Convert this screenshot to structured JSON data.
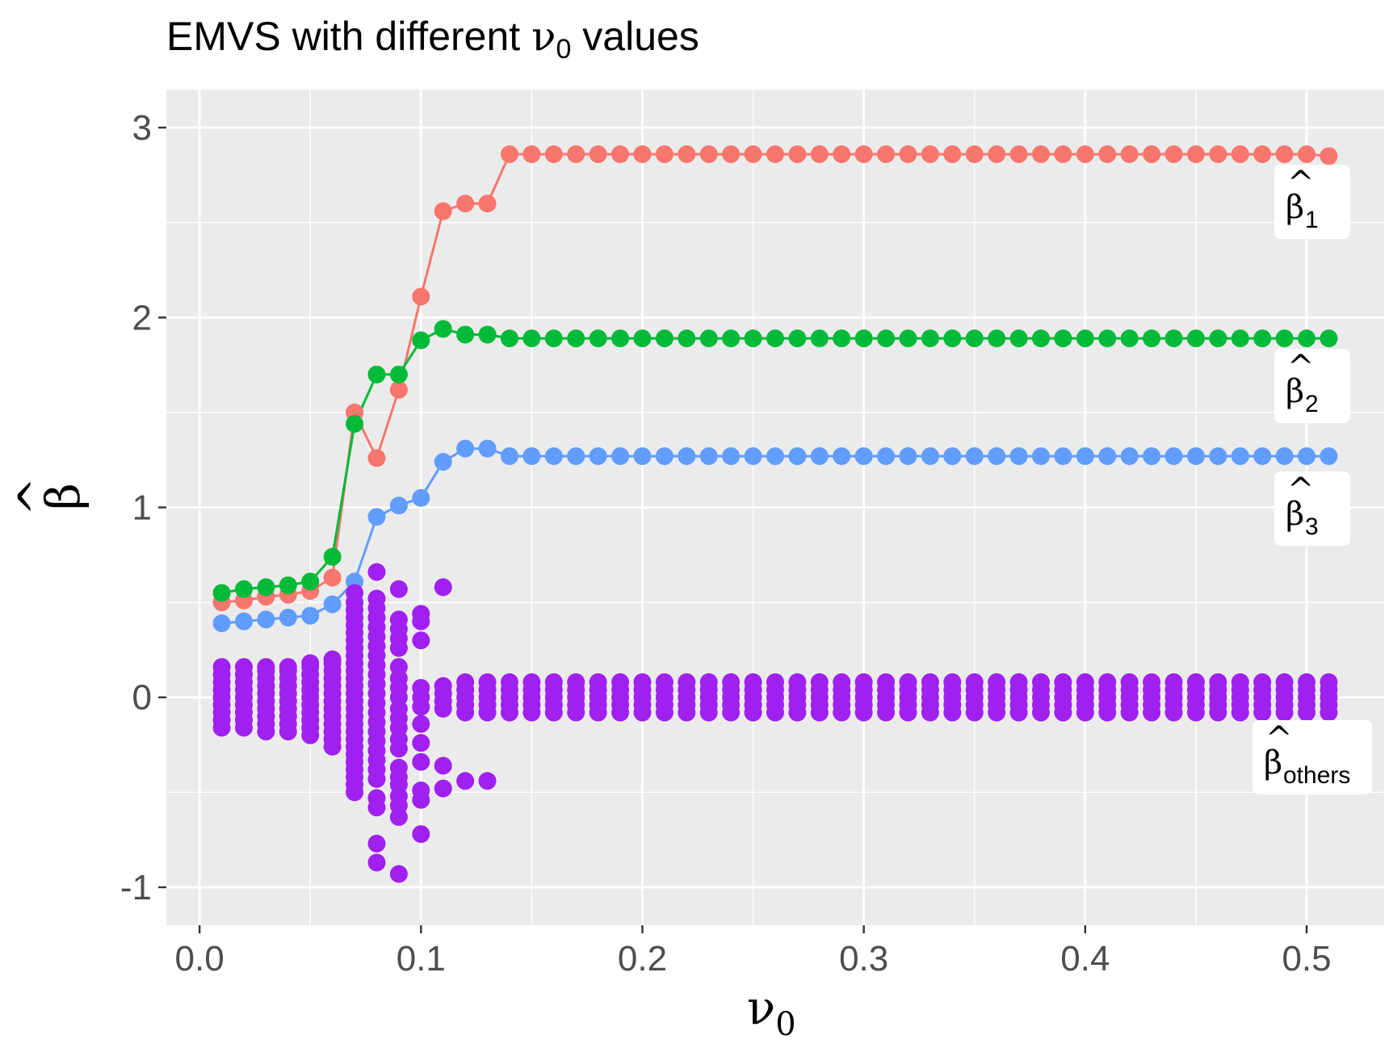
{
  "chart_data": {
    "type": "scatter",
    "title": {
      "text": "EMVS with different ",
      "symbol": "ν",
      "symbol_sub": "0",
      "suffix": " values"
    },
    "xlabel": {
      "symbol": "ν",
      "sub": "0"
    },
    "ylabel": {
      "symbol": "β",
      "hat": "^"
    },
    "xlim": [
      -0.015,
      0.535
    ],
    "ylim": [
      -1.2,
      3.2
    ],
    "x_ticks": [
      0.0,
      0.1,
      0.2,
      0.3,
      0.4,
      0.5
    ],
    "x_tick_labels": [
      "0.0",
      "0.1",
      "0.2",
      "0.3",
      "0.4",
      "0.5"
    ],
    "y_ticks": [
      -1,
      0,
      1,
      2,
      3
    ],
    "y_tick_labels": [
      "-1",
      "0",
      "1",
      "2",
      "3"
    ],
    "grid": true,
    "panel_background": "#ebebeb",
    "series": [
      {
        "label": {
          "symbol": "β",
          "hat": "^",
          "sub": "1"
        },
        "color": "#f8766d",
        "lines": true,
        "x": [
          0.01,
          0.02,
          0.03,
          0.04,
          0.05,
          0.06,
          0.07,
          0.08,
          0.09,
          0.1,
          0.11,
          0.12,
          0.13,
          0.14,
          0.15,
          0.16,
          0.17,
          0.18,
          0.19,
          0.2,
          0.21,
          0.22,
          0.23,
          0.24,
          0.25,
          0.26,
          0.27,
          0.28,
          0.29,
          0.3,
          0.31,
          0.32,
          0.33,
          0.34,
          0.35,
          0.36,
          0.37,
          0.38,
          0.39,
          0.4,
          0.41,
          0.42,
          0.43,
          0.44,
          0.45,
          0.46,
          0.47,
          0.48,
          0.49,
          0.5,
          0.51
        ],
        "y": [
          0.5,
          0.51,
          0.53,
          0.54,
          0.56,
          0.63,
          1.5,
          1.26,
          1.62,
          2.11,
          2.56,
          2.6,
          2.6,
          2.86,
          2.86,
          2.86,
          2.86,
          2.86,
          2.86,
          2.86,
          2.86,
          2.86,
          2.86,
          2.86,
          2.86,
          2.86,
          2.86,
          2.86,
          2.86,
          2.86,
          2.86,
          2.86,
          2.86,
          2.86,
          2.86,
          2.86,
          2.86,
          2.86,
          2.86,
          2.86,
          2.86,
          2.86,
          2.86,
          2.86,
          2.86,
          2.86,
          2.86,
          2.86,
          2.86,
          2.86,
          2.85
        ]
      },
      {
        "label": {
          "symbol": "β",
          "hat": "^",
          "sub": "2"
        },
        "color": "#00ba38",
        "lines": true,
        "x": [
          0.01,
          0.02,
          0.03,
          0.04,
          0.05,
          0.06,
          0.07,
          0.08,
          0.09,
          0.1,
          0.11,
          0.12,
          0.13,
          0.14,
          0.15,
          0.16,
          0.17,
          0.18,
          0.19,
          0.2,
          0.21,
          0.22,
          0.23,
          0.24,
          0.25,
          0.26,
          0.27,
          0.28,
          0.29,
          0.3,
          0.31,
          0.32,
          0.33,
          0.34,
          0.35,
          0.36,
          0.37,
          0.38,
          0.39,
          0.4,
          0.41,
          0.42,
          0.43,
          0.44,
          0.45,
          0.46,
          0.47,
          0.48,
          0.49,
          0.5,
          0.51
        ],
        "y": [
          0.55,
          0.57,
          0.58,
          0.59,
          0.61,
          0.74,
          1.44,
          1.7,
          1.7,
          1.88,
          1.94,
          1.91,
          1.91,
          1.89,
          1.89,
          1.89,
          1.89,
          1.89,
          1.89,
          1.89,
          1.89,
          1.89,
          1.89,
          1.89,
          1.89,
          1.89,
          1.89,
          1.89,
          1.89,
          1.89,
          1.89,
          1.89,
          1.89,
          1.89,
          1.89,
          1.89,
          1.89,
          1.89,
          1.89,
          1.89,
          1.89,
          1.89,
          1.89,
          1.89,
          1.89,
          1.89,
          1.89,
          1.89,
          1.89,
          1.89,
          1.89
        ]
      },
      {
        "label": {
          "symbol": "β",
          "hat": "^",
          "sub": "3"
        },
        "color": "#619cff",
        "lines": true,
        "x": [
          0.01,
          0.02,
          0.03,
          0.04,
          0.05,
          0.06,
          0.07,
          0.08,
          0.09,
          0.1,
          0.11,
          0.12,
          0.13,
          0.14,
          0.15,
          0.16,
          0.17,
          0.18,
          0.19,
          0.2,
          0.21,
          0.22,
          0.23,
          0.24,
          0.25,
          0.26,
          0.27,
          0.28,
          0.29,
          0.3,
          0.31,
          0.32,
          0.33,
          0.34,
          0.35,
          0.36,
          0.37,
          0.38,
          0.39,
          0.4,
          0.41,
          0.42,
          0.43,
          0.44,
          0.45,
          0.46,
          0.47,
          0.48,
          0.49,
          0.5,
          0.51
        ],
        "y": [
          0.39,
          0.4,
          0.41,
          0.42,
          0.43,
          0.49,
          0.61,
          0.95,
          1.01,
          1.05,
          1.24,
          1.31,
          1.31,
          1.27,
          1.27,
          1.27,
          1.27,
          1.27,
          1.27,
          1.27,
          1.27,
          1.27,
          1.27,
          1.27,
          1.27,
          1.27,
          1.27,
          1.27,
          1.27,
          1.27,
          1.27,
          1.27,
          1.27,
          1.27,
          1.27,
          1.27,
          1.27,
          1.27,
          1.27,
          1.27,
          1.27,
          1.27,
          1.27,
          1.27,
          1.27,
          1.27,
          1.27,
          1.27,
          1.27,
          1.27,
          1.27
        ]
      },
      {
        "label": {
          "symbol": "β",
          "hat": "^",
          "sub": "others"
        },
        "color": "#a020f0",
        "lines": false,
        "groups": [
          {
            "x": 0.01,
            "y": [
              -0.16,
              -0.12,
              -0.08,
              -0.04,
              0.0,
              0.04,
              0.08,
              0.12,
              0.16
            ]
          },
          {
            "x": 0.02,
            "y": [
              -0.16,
              -0.12,
              -0.08,
              -0.04,
              0.0,
              0.04,
              0.08,
              0.12,
              0.16
            ]
          },
          {
            "x": 0.03,
            "y": [
              -0.18,
              -0.14,
              -0.1,
              -0.06,
              -0.02,
              0.02,
              0.06,
              0.1,
              0.14,
              0.16
            ]
          },
          {
            "x": 0.04,
            "y": [
              -0.18,
              -0.14,
              -0.1,
              -0.06,
              -0.02,
              0.02,
              0.06,
              0.1,
              0.14,
              0.16
            ]
          },
          {
            "x": 0.05,
            "y": [
              -0.2,
              -0.16,
              -0.12,
              -0.08,
              -0.04,
              0.0,
              0.04,
              0.08,
              0.12,
              0.16,
              0.18
            ]
          },
          {
            "x": 0.06,
            "y": [
              -0.26,
              -0.22,
              -0.18,
              -0.14,
              -0.1,
              -0.06,
              -0.02,
              0.02,
              0.06,
              0.1,
              0.14,
              0.18,
              0.2
            ]
          },
          {
            "x": 0.07,
            "y": [
              -0.5,
              -0.46,
              -0.42,
              -0.38,
              -0.34,
              -0.3,
              -0.26,
              -0.22,
              -0.18,
              -0.14,
              -0.1,
              -0.06,
              -0.02,
              0.02,
              0.06,
              0.1,
              0.14,
              0.18,
              0.22,
              0.26,
              0.3,
              0.34,
              0.38,
              0.42,
              0.46,
              0.5,
              0.55
            ]
          },
          {
            "x": 0.08,
            "y": [
              -0.87,
              -0.77,
              -0.58,
              -0.53,
              -0.43,
              -0.38,
              -0.33,
              -0.28,
              -0.23,
              -0.18,
              -0.13,
              -0.08,
              -0.03,
              0.02,
              0.07,
              0.12,
              0.17,
              0.22,
              0.27,
              0.32,
              0.37,
              0.42,
              0.47,
              0.52,
              0.66
            ]
          },
          {
            "x": 0.09,
            "y": [
              -0.93,
              -0.63,
              -0.57,
              -0.52,
              -0.46,
              -0.42,
              -0.37,
              -0.27,
              -0.22,
              -0.16,
              -0.11,
              -0.06,
              0.0,
              0.05,
              0.1,
              0.16,
              0.26,
              0.31,
              0.36,
              0.41,
              0.57
            ]
          },
          {
            "x": 0.1,
            "y": [
              -0.72,
              -0.54,
              -0.49,
              -0.34,
              -0.24,
              -0.14,
              -0.05,
              0.0,
              0.05,
              0.3,
              0.4,
              0.44
            ]
          },
          {
            "x": 0.11,
            "y": [
              -0.48,
              -0.36,
              -0.06,
              -0.02,
              0.02,
              0.06,
              0.58
            ]
          },
          {
            "x": 0.12,
            "y": [
              -0.44,
              -0.08,
              -0.04,
              0.0,
              0.04,
              0.08
            ]
          },
          {
            "x": 0.13,
            "y": [
              -0.44,
              -0.08,
              -0.04,
              0.0,
              0.04,
              0.08
            ]
          },
          {
            "range": [
              0.14,
              0.51
            ],
            "step": 0.01,
            "y": [
              -0.08,
              -0.04,
              0.0,
              0.04,
              0.08
            ]
          }
        ]
      }
    ]
  }
}
